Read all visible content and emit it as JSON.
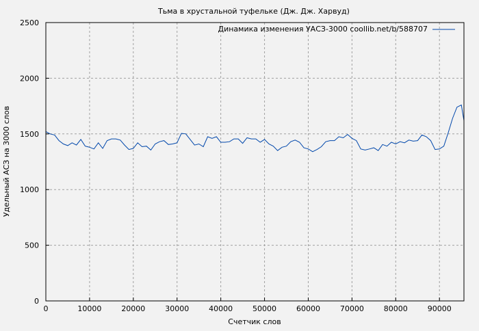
{
  "chart_data": {
    "type": "line",
    "title": "Тьма в хрустальной туфельке (Дж. Дж. Харвуд)",
    "xlabel": "Счетчик слов",
    "ylabel": "Удельный АСЗ на 3000 слов",
    "xlim": [
      0,
      95600
    ],
    "ylim": [
      0,
      2500
    ],
    "xticks": [
      0,
      10000,
      20000,
      30000,
      40000,
      50000,
      60000,
      70000,
      80000,
      90000
    ],
    "yticks": [
      0,
      500,
      1000,
      1500,
      2000,
      2500
    ],
    "grid": true,
    "legend_position": "top-right",
    "series": [
      {
        "name": "Динамика изменения УАСЗ-3000 coollib.net/b/588707",
        "color": "#0047ab",
        "x": [
          0,
          1000,
          2000,
          3000,
          4000,
          5000,
          6000,
          7000,
          8000,
          9000,
          10000,
          11000,
          12000,
          13000,
          14000,
          15000,
          16000,
          17000,
          18000,
          19000,
          20000,
          21000,
          22000,
          23000,
          24000,
          25000,
          26000,
          27000,
          28000,
          29000,
          30000,
          31000,
          32000,
          33000,
          34000,
          35000,
          36000,
          37000,
          38000,
          39000,
          40000,
          41000,
          42000,
          43000,
          44000,
          45000,
          46000,
          47000,
          48000,
          49000,
          50000,
          51000,
          52000,
          53000,
          54000,
          55000,
          56000,
          57000,
          58000,
          59000,
          60000,
          61000,
          62000,
          63000,
          64000,
          65000,
          66000,
          67000,
          68000,
          69000,
          70000,
          71000,
          72000,
          73000,
          74000,
          75000,
          76000,
          77000,
          78000,
          79000,
          80000,
          81000,
          82000,
          83000,
          84000,
          85000,
          86000,
          87000,
          88000,
          89000,
          90000,
          91000,
          92000,
          93000,
          94000,
          95000,
          95600
        ],
        "y": [
          1520,
          1500,
          1490,
          1440,
          1410,
          1395,
          1420,
          1400,
          1450,
          1390,
          1380,
          1365,
          1420,
          1370,
          1440,
          1455,
          1455,
          1445,
          1400,
          1360,
          1370,
          1420,
          1385,
          1390,
          1355,
          1410,
          1430,
          1440,
          1405,
          1410,
          1420,
          1505,
          1500,
          1450,
          1400,
          1410,
          1385,
          1475,
          1460,
          1475,
          1425,
          1425,
          1430,
          1455,
          1455,
          1415,
          1465,
          1455,
          1455,
          1425,
          1450,
          1410,
          1390,
          1350,
          1380,
          1390,
          1430,
          1445,
          1425,
          1375,
          1365,
          1340,
          1360,
          1385,
          1430,
          1440,
          1440,
          1475,
          1465,
          1495,
          1460,
          1440,
          1365,
          1355,
          1365,
          1375,
          1350,
          1405,
          1390,
          1425,
          1410,
          1430,
          1420,
          1445,
          1435,
          1440,
          1490,
          1475,
          1440,
          1360,
          1365,
          1390,
          1510,
          1640,
          1740,
          1760,
          1620
        ]
      }
    ]
  }
}
